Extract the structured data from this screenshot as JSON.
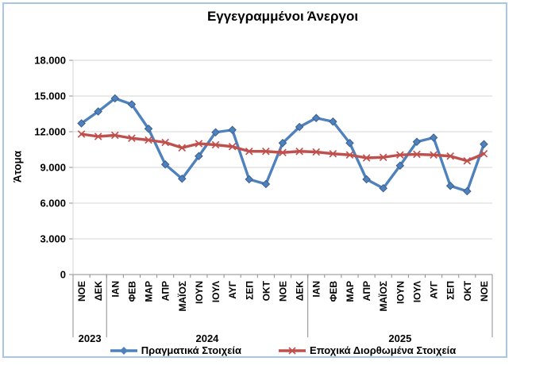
{
  "chart_data": {
    "type": "line",
    "title": "Εγγεγραμμένοι Άνεργοι",
    "ylabel": "Άτομα",
    "xlabel": "",
    "ylim": [
      0,
      18000
    ],
    "ytick_step": 3000,
    "ytick_labels": [
      "0",
      "3.000",
      "6.000",
      "9.000",
      "12.000",
      "15.000",
      "18.000"
    ],
    "grid": true,
    "legend_position": "bottom",
    "categories": [
      "ΝΟΕ",
      "ΔΕΚ",
      "ΙΑΝ",
      "ΦΕΒ",
      "ΜΑΡ",
      "ΑΠΡ",
      "ΜΑΪΟΣ",
      "ΙΟΥΝ",
      "ΙΟΥΛ",
      "ΑΥΓ",
      "ΣΕΠ",
      "ΟΚΤ",
      "ΝΟΕ",
      "ΔΕΚ",
      "ΙΑΝ",
      "ΦΕΒ",
      "ΜΑΡ",
      "ΑΠΡ",
      "ΜΑΪΟΣ",
      "ΙΟΥΝ",
      "ΙΟΥΛ",
      "ΑΥΓ",
      "ΣΕΠ",
      "ΟΚΤ",
      "ΝΟΕ"
    ],
    "year_groups": [
      {
        "label": "2023",
        "count": 2
      },
      {
        "label": "2024",
        "count": 12
      },
      {
        "label": "2025",
        "count": 11
      }
    ],
    "series": [
      {
        "name": "Πραγματικά Στοιχεία",
        "color": "#4F81BD",
        "marker": "diamond",
        "marker_edge": "#3A6190",
        "values": [
          12700,
          13700,
          14800,
          14300,
          12250,
          9250,
          8050,
          9950,
          11950,
          12150,
          8000,
          7600,
          11050,
          12400,
          13150,
          12850,
          11050,
          8000,
          7250,
          9150,
          11150,
          11500,
          7450,
          7000,
          10950
        ]
      },
      {
        "name": "Εποχικά Διορθωμένα Στοιχεία",
        "color": "#C0504D",
        "marker": "x",
        "values": [
          11800,
          11600,
          11700,
          11450,
          11300,
          11100,
          10650,
          11000,
          10900,
          10750,
          10350,
          10350,
          10250,
          10350,
          10300,
          10150,
          10050,
          9800,
          9850,
          10050,
          10100,
          10050,
          9950,
          9550,
          10150
        ]
      }
    ]
  },
  "frame": {
    "border_color": "#A8C6E8",
    "background": "#FFFFFF"
  },
  "axis": {
    "line_color": "#8C8C8C",
    "grid_color": "#D4D4D4",
    "text_color": "#000000"
  }
}
